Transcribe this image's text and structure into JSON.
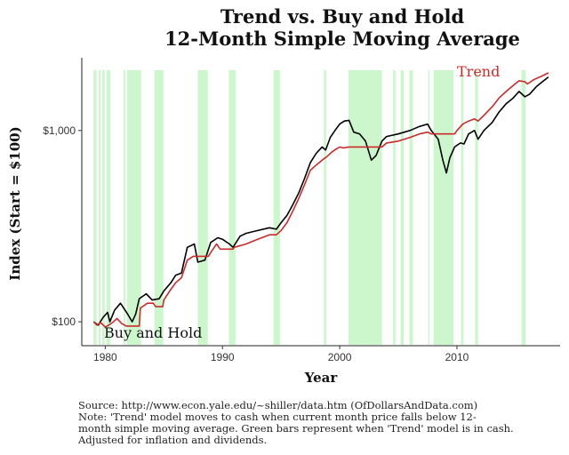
{
  "chart_data": {
    "type": "line",
    "title": "Trend vs. Buy and Hold",
    "subtitle": "12-Month Simple Moving Average",
    "xlabel": "Year",
    "ylabel": "Index (Start = $100)",
    "xlim": [
      1978.0,
      2018.8
    ],
    "ylim": [
      75,
      2400
    ],
    "yscale": "log",
    "grid": false,
    "legend": "direct labels",
    "x_ticks": [
      1980,
      1990,
      2000,
      2010
    ],
    "x_tick_labels": [
      "1980",
      "1990",
      "2000",
      "2010"
    ],
    "y_ticks": [
      100,
      1000
    ],
    "y_tick_labels": [
      "$100",
      "$1,000"
    ],
    "colors": {
      "trend": "#cc2a2a",
      "buy_and_hold": "#000000",
      "cash_bars": "#ccf7cc"
    },
    "series": [
      {
        "name": "Buy and Hold",
        "x": [
          1979.0,
          1979.4,
          1979.8,
          1980.2,
          1980.4,
          1980.8,
          1981.3,
          1981.9,
          1982.3,
          1982.6,
          1982.9,
          1983.5,
          1984.0,
          1984.6,
          1985.0,
          1985.6,
          1986.0,
          1986.5,
          1987.0,
          1987.6,
          1987.9,
          1988.5,
          1989.0,
          1989.6,
          1990.0,
          1990.6,
          1990.9,
          1991.5,
          1992.0,
          1993.0,
          1994.0,
          1994.6,
          1995.0,
          1995.5,
          1996.0,
          1996.5,
          1997.0,
          1997.5,
          1998.0,
          1998.5,
          1998.8,
          1999.2,
          1999.6,
          2000.0,
          2000.4,
          2000.8,
          2001.2,
          2001.7,
          2002.2,
          2002.7,
          2003.1,
          2003.6,
          2004.0,
          2005.0,
          2006.0,
          2006.8,
          2007.5,
          2007.8,
          2008.4,
          2008.8,
          2009.1,
          2009.4,
          2009.8,
          2010.3,
          2010.6,
          2011.0,
          2011.5,
          2011.8,
          2012.3,
          2013.0,
          2013.6,
          2014.2,
          2014.8,
          2015.3,
          2015.8,
          2016.2,
          2016.8,
          2017.3,
          2017.8
        ],
        "y": [
          100,
          96,
          105,
          112,
          100,
          115,
          125,
          110,
          100,
          110,
          132,
          140,
          130,
          132,
          145,
          160,
          175,
          180,
          245,
          255,
          205,
          210,
          260,
          275,
          270,
          255,
          245,
          280,
          290,
          300,
          310,
          305,
          330,
          360,
          410,
          470,
          560,
          680,
          760,
          820,
          790,
          920,
          1000,
          1080,
          1120,
          1130,
          980,
          960,
          880,
          700,
          740,
          880,
          930,
          960,
          1000,
          1050,
          1080,
          1000,
          900,
          700,
          600,
          720,
          820,
          860,
          850,
          960,
          1000,
          900,
          1000,
          1100,
          1250,
          1380,
          1480,
          1600,
          1500,
          1550,
          1700,
          1800,
          1900
        ]
      },
      {
        "name": "Trend",
        "x": [
          1979.0,
          1979.3,
          1979.6,
          1980.0,
          1980.3,
          1980.7,
          1981.0,
          1981.4,
          1981.8,
          1982.0,
          1982.9,
          1983.0,
          1983.6,
          1984.1,
          1984.3,
          1984.9,
          1985.0,
          1985.5,
          1986.0,
          1986.5,
          1987.0,
          1987.5,
          1987.8,
          1988.8,
          1989.0,
          1989.5,
          1989.8,
          1990.6,
          1990.9,
          1991.0,
          1992.0,
          1993.0,
          1994.0,
          1994.6,
          1995.0,
          1995.5,
          1996.0,
          1996.5,
          1997.0,
          1997.5,
          1998.0,
          1998.5,
          1998.9,
          1999.3,
          1999.7,
          2000.0,
          2000.3,
          2000.8,
          2003.6,
          2003.8,
          2004.0,
          2005.0,
          2006.0,
          2006.8,
          2007.5,
          2007.8,
          2009.8,
          2010.0,
          2010.5,
          2011.0,
          2011.5,
          2011.8,
          2012.3,
          2013.0,
          2013.6,
          2014.2,
          2014.8,
          2015.3,
          2015.8,
          2016.0,
          2016.6,
          2017.2,
          2017.8
        ],
        "y": [
          100,
          96,
          99,
          94,
          96,
          100,
          104,
          98,
          95,
          95,
          95,
          118,
          125,
          125,
          120,
          120,
          130,
          145,
          160,
          170,
          210,
          220,
          220,
          220,
          230,
          255,
          240,
          240,
          240,
          245,
          255,
          270,
          285,
          285,
          300,
          330,
          380,
          440,
          520,
          620,
          660,
          700,
          730,
          770,
          800,
          820,
          810,
          820,
          820,
          840,
          860,
          880,
          920,
          960,
          980,
          960,
          960,
          1000,
          1080,
          1120,
          1150,
          1120,
          1200,
          1330,
          1480,
          1600,
          1720,
          1820,
          1800,
          1750,
          1850,
          1920,
          2000
        ]
      }
    ],
    "cash_periods": [
      [
        1979.0,
        1979.25
      ],
      [
        1979.45,
        1979.6
      ],
      [
        1979.75,
        1979.95
      ],
      [
        1980.1,
        1980.45
      ],
      [
        1981.55,
        1981.7
      ],
      [
        1981.85,
        1983.05
      ],
      [
        1984.2,
        1984.95
      ],
      [
        1987.9,
        1988.75
      ],
      [
        1990.55,
        1991.1
      ],
      [
        1994.35,
        1994.9
      ],
      [
        1998.65,
        1998.85
      ],
      [
        2000.75,
        2003.6
      ],
      [
        2004.55,
        2004.75
      ],
      [
        2005.2,
        2005.45
      ],
      [
        2005.95,
        2006.25
      ],
      [
        2007.55,
        2007.65
      ],
      [
        2008.0,
        2009.7
      ],
      [
        2010.35,
        2010.55
      ],
      [
        2011.55,
        2011.8
      ],
      [
        2015.5,
        2015.85
      ]
    ],
    "annotations": [
      "Trend",
      "Buy and Hold"
    ],
    "notes": [
      "Source: http://www.econ.yale.edu/~shiller/data.htm (OfDollarsAndData.com)",
      "Note: 'Trend' model moves to cash when current month price falls below 12-",
      "month simple moving average. Green bars represent when 'Trend' model is in cash.",
      "Adjusted for inflation and dividends."
    ]
  }
}
